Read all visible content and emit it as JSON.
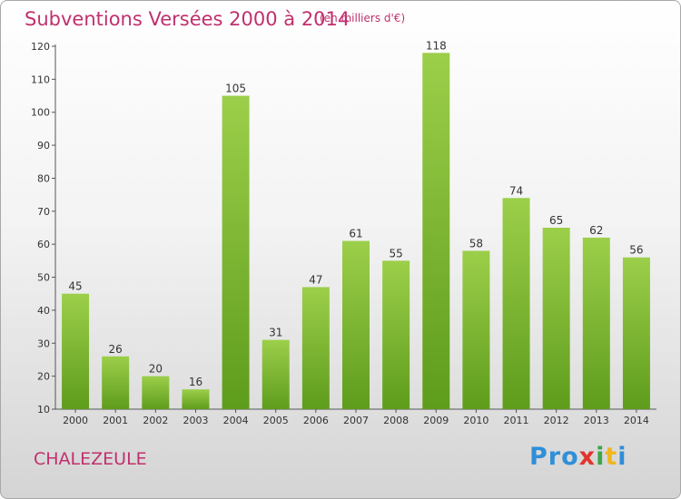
{
  "chart_data": {
    "type": "bar",
    "title": "Subventions Versées 2000 à 2014",
    "subtitle": "(en milliers d'€)",
    "categories": [
      "2000",
      "2001",
      "2002",
      "2003",
      "2004",
      "2005",
      "2006",
      "2007",
      "2008",
      "2009",
      "2010",
      "2011",
      "2012",
      "2013",
      "2014"
    ],
    "values": [
      45,
      26,
      20,
      16,
      105,
      31,
      47,
      61,
      55,
      118,
      58,
      74,
      65,
      62,
      56
    ],
    "ylim": [
      10,
      120
    ],
    "yticks": [
      10,
      20,
      30,
      40,
      50,
      60,
      70,
      80,
      90,
      100,
      110,
      120
    ],
    "grid": false,
    "bar_color": "#8cc63f"
  },
  "footer": {
    "commune": "CHALEZEULE",
    "logo": [
      "Pro",
      "x",
      "i",
      "t",
      "i"
    ]
  }
}
